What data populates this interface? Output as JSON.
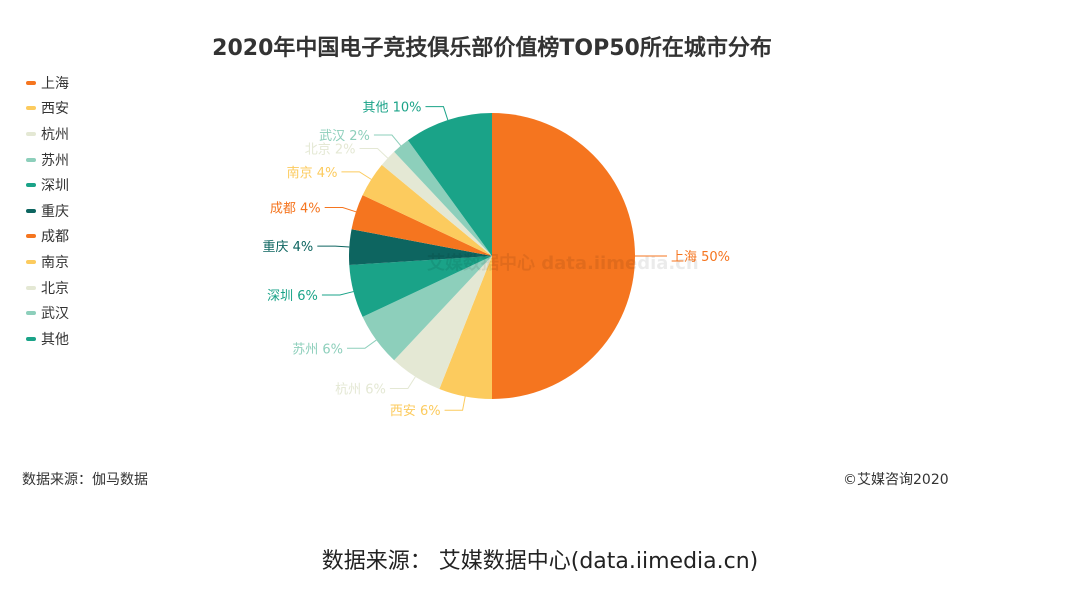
{
  "chart_data": {
    "type": "pie",
    "title": "2020年中国电子竞技俱乐部价值榜TOP50所在城市分布",
    "categories": [
      "上海",
      "西安",
      "杭州",
      "苏州",
      "深圳",
      "重庆",
      "成都",
      "南京",
      "北京",
      "武汉",
      "其他"
    ],
    "values": [
      50,
      6,
      6,
      6,
      6,
      4,
      4,
      4,
      2,
      2,
      10
    ],
    "unit": "%",
    "colors": [
      "#F5751F",
      "#FCCB5E",
      "#E4E8D4",
      "#8DCFBB",
      "#1AA388",
      "#0D6560",
      "#F5751F",
      "#FCCB5E",
      "#E4E8D4",
      "#8DCFBB",
      "#1AA388"
    ],
    "legend_position": "top-left",
    "start_angle": "12 o'clock, clockwise"
  },
  "source_note": "数据来源：伽马数据",
  "copyright": "©艾媒咨询2020",
  "watermark": "艾媒数据中心 data.iimedia.cn",
  "footer": "数据来源： 艾媒数据中心(data.iimedia.cn)"
}
